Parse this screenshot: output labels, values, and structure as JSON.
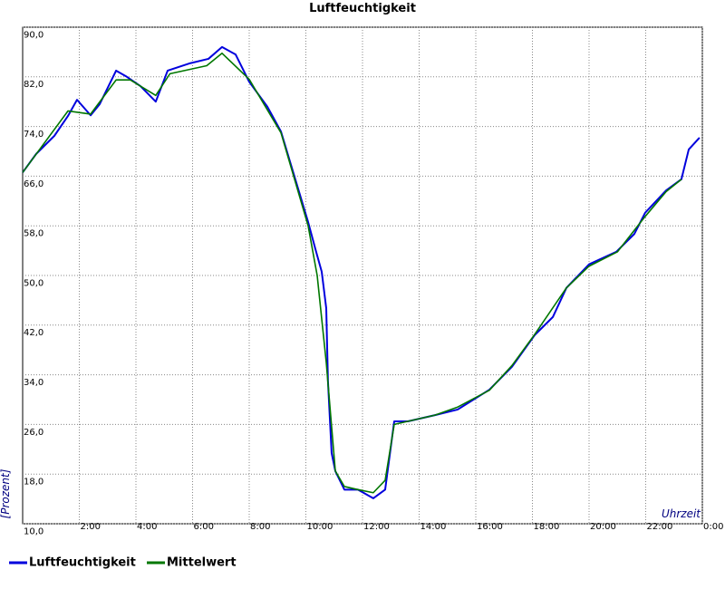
{
  "chart_data": {
    "type": "line",
    "title": "Luftfeuchtigkeit",
    "y_label": "[Prozent]",
    "x_label": "Uhrzeit",
    "xlim": [
      0,
      24
    ],
    "ylim": [
      10,
      90
    ],
    "grid": true,
    "legend": "bottom",
    "xticks": [
      {
        "value": 2,
        "label": "2:00"
      },
      {
        "value": 4,
        "label": "4:00"
      },
      {
        "value": 6,
        "label": "6:00"
      },
      {
        "value": 8,
        "label": "8:00"
      },
      {
        "value": 10,
        "label": "10:00"
      },
      {
        "value": 12,
        "label": "12:00"
      },
      {
        "value": 14,
        "label": "14:00"
      },
      {
        "value": 16,
        "label": "16:00"
      },
      {
        "value": 18,
        "label": "18:00"
      },
      {
        "value": 20,
        "label": "20:00"
      },
      {
        "value": 22,
        "label": "22:00"
      },
      {
        "value": 24,
        "label": "0:00"
      }
    ],
    "yticks": [
      {
        "value": 10,
        "label": "10,0"
      },
      {
        "value": 18,
        "label": "18,0"
      },
      {
        "value": 26,
        "label": "26,0"
      },
      {
        "value": 34,
        "label": "34,0"
      },
      {
        "value": 42,
        "label": "42,0"
      },
      {
        "value": 50,
        "label": "50,0"
      },
      {
        "value": 58,
        "label": "58,0"
      },
      {
        "value": 66,
        "label": "66,0"
      },
      {
        "value": 74,
        "label": "74,0"
      },
      {
        "value": 82,
        "label": "82,0"
      },
      {
        "value": 90,
        "label": "90,0"
      }
    ],
    "series": [
      {
        "name": "Luftfeuchtigkeit",
        "color": "#0000dd",
        "x": [
          0,
          0.48,
          1.12,
          1.6,
          1.92,
          2.4,
          2.72,
          3.3,
          3.68,
          4.16,
          4.7,
          5.12,
          5.92,
          6.56,
          7.04,
          7.52,
          8.0,
          8.64,
          9.12,
          9.6,
          10.08,
          10.34,
          10.56,
          10.72,
          10.78,
          10.91,
          11.04,
          11.36,
          11.84,
          12.38,
          12.8,
          13.12,
          13.6,
          14.56,
          15.36,
          16.48,
          17.28,
          18.08,
          18.72,
          19.2,
          20,
          20.96,
          21.6,
          21.98,
          22.72,
          23.26,
          23.52,
          23.9
        ],
        "values": [
          66.6,
          69.6,
          72.5,
          75.7,
          78.3,
          75.8,
          77.6,
          83,
          82,
          80.5,
          78,
          83,
          84.2,
          84.9,
          86.8,
          85.6,
          81.2,
          77.2,
          73.2,
          65.9,
          58.6,
          54.2,
          50.6,
          44.7,
          33,
          21.4,
          18.5,
          15.5,
          15.5,
          14.1,
          15.5,
          26.5,
          26.5,
          27.5,
          28.4,
          31.6,
          35.3,
          40.4,
          43.3,
          48,
          51.8,
          53.8,
          56.7,
          60.1,
          63.7,
          65.5,
          70.3,
          72.2
        ]
      },
      {
        "name": "Mittelwert",
        "color": "#007700",
        "x": [
          0,
          1.6,
          2.4,
          3.3,
          3.8,
          4.7,
          5.2,
          6.5,
          7.04,
          8.0,
          9.12,
          10.08,
          10.4,
          10.72,
          11.04,
          11.36,
          11.84,
          12.38,
          12.8,
          13.12,
          14.56,
          15.36,
          16.48,
          17.28,
          18.08,
          19.2,
          20,
          21,
          21.98,
          22.72,
          23.26
        ],
        "values": [
          66.6,
          76.5,
          76,
          81.5,
          81.5,
          79,
          82.5,
          83.8,
          85.8,
          81.6,
          73,
          58,
          50,
          36,
          18.5,
          16,
          15.5,
          15,
          17,
          26,
          27.5,
          28.8,
          31.5,
          35.5,
          40.5,
          48,
          51.5,
          53.8,
          59.5,
          63.5,
          65.5
        ]
      }
    ]
  }
}
